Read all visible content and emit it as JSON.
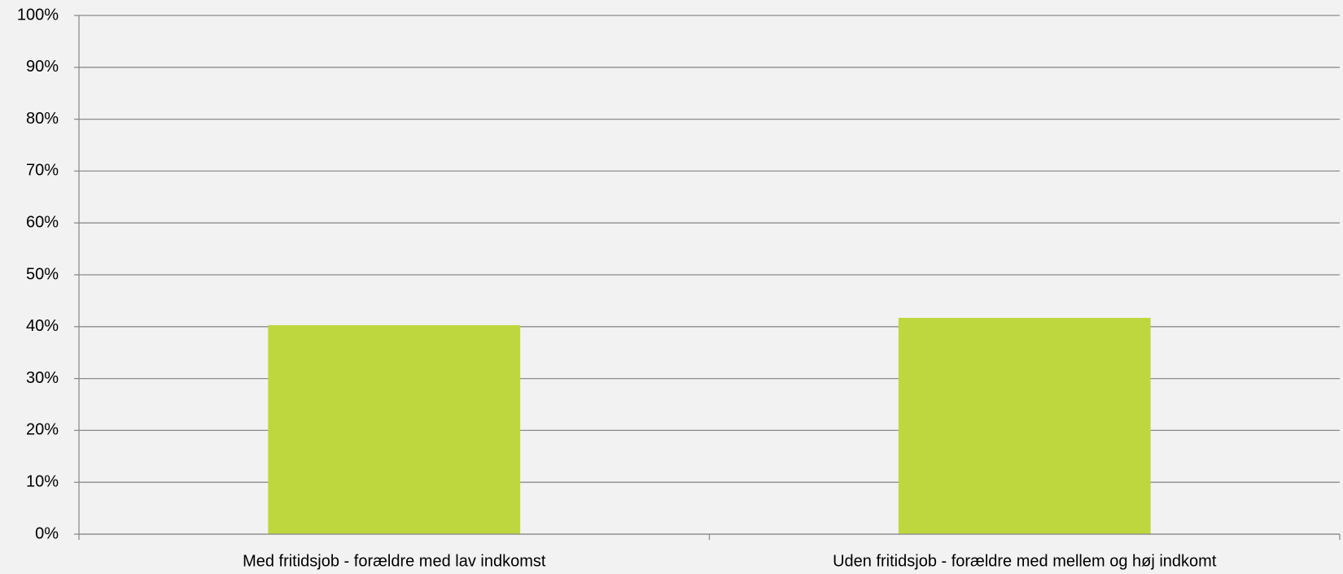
{
  "chart_data": {
    "type": "bar",
    "categories": [
      "Med fritidsjob - forældre med lav indkomst",
      "Uden fritidsjob - forældre med mellem og høj indkomt"
    ],
    "values": [
      40.3,
      41.7
    ],
    "color": "#bfd73e",
    "ylim": [
      0,
      100
    ],
    "yticks": [
      {
        "value": 0,
        "label": "0%"
      },
      {
        "value": 10,
        "label": "10%"
      },
      {
        "value": 20,
        "label": "20%"
      },
      {
        "value": 30,
        "label": "30%"
      },
      {
        "value": 40,
        "label": "40%"
      },
      {
        "value": 50,
        "label": "50%"
      },
      {
        "value": 60,
        "label": "60%"
      },
      {
        "value": 70,
        "label": "70%"
      },
      {
        "value": 80,
        "label": "80%"
      },
      {
        "value": 90,
        "label": "90%"
      },
      {
        "value": 100,
        "label": "100%"
      }
    ],
    "grid": true
  }
}
